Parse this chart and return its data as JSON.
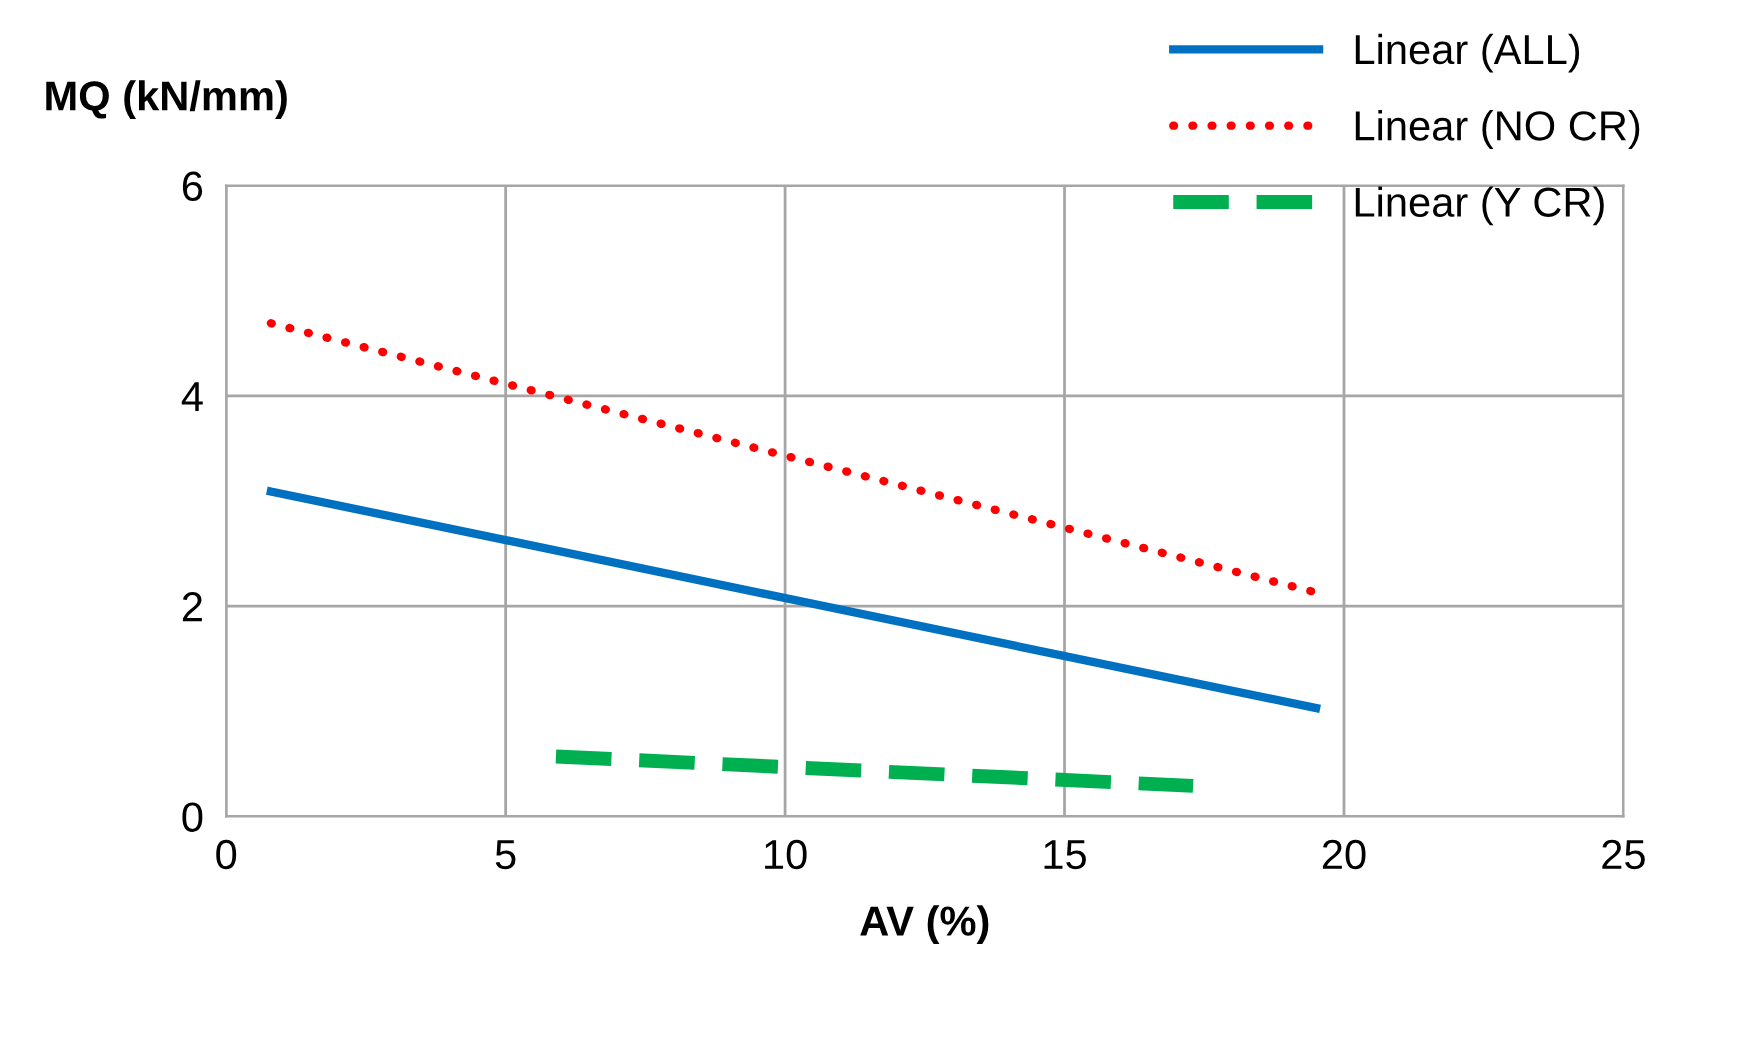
{
  "chart_data": {
    "type": "line",
    "xlabel": "AV (%)",
    "ylabel": "MQ (kN/mm)",
    "xlim": [
      0,
      25
    ],
    "xticks": [
      0,
      5,
      10,
      15,
      20,
      25
    ],
    "ylim": [
      0,
      6
    ],
    "yticks": [
      0,
      2,
      4,
      6
    ],
    "grid": true,
    "legend": "top right",
    "series": [
      {
        "name": "Linear (ALL)",
        "color": "#0070c0",
        "line_style": "solid",
        "x": [
          0.8,
          19.5
        ],
        "values": [
          3.09,
          1.03
        ]
      },
      {
        "name": "Linear (NO CR)",
        "color": "#ff0000",
        "line_style": "dotted",
        "x": [
          0.8,
          19.5
        ],
        "values": [
          4.69,
          2.13
        ]
      },
      {
        "name": "Linear (Y CR)",
        "color": "#00b050",
        "line_style": "dashed",
        "x": [
          5.9,
          17.3
        ],
        "values": [
          0.57,
          0.29
        ]
      }
    ]
  }
}
